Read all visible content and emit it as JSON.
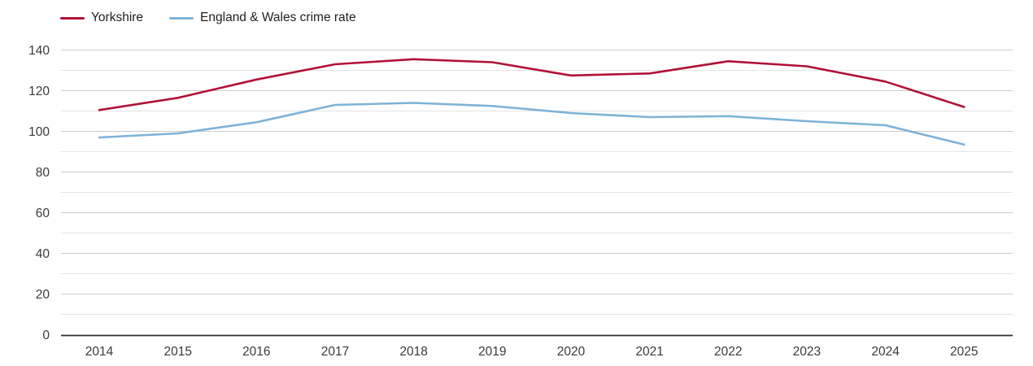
{
  "legend": {
    "position": "top-left",
    "items": [
      {
        "label": "Yorkshire",
        "color": "#b01236"
      },
      {
        "label": "England & Wales crime rate",
        "color": "#7fb2d7"
      }
    ]
  },
  "chart_data": {
    "type": "line",
    "title": "",
    "xlabel": "",
    "ylabel": "",
    "x": [
      2014,
      2015,
      2016,
      2017,
      2018,
      2019,
      2020,
      2021,
      2022,
      2023,
      2024,
      2025
    ],
    "series": [
      {
        "name": "Yorkshire",
        "color": "#b01236",
        "values": [
          110.5,
          116.5,
          125.5,
          133,
          135.5,
          134,
          127.5,
          128.5,
          134.5,
          132,
          124.5,
          112
        ]
      },
      {
        "name": "England & Wales crime rate",
        "color": "#7fb2d7",
        "values": [
          97,
          99,
          104.5,
          113,
          114,
          112.5,
          109,
          107,
          107.5,
          105,
          103,
          93.5
        ]
      }
    ],
    "ylim": [
      0,
      140
    ],
    "y_ticks": [
      0,
      20,
      40,
      60,
      80,
      100,
      120,
      140
    ],
    "y_minor_step": 10,
    "grid": "horizontal",
    "legend_position": "top-left"
  },
  "colors": {
    "grid_major": "#cbcbcb",
    "grid_minor": "#e4e4e4",
    "axis": "#2e2e2e",
    "tick_text": "#3a3a3a",
    "legend_text": "#1f1f1f",
    "background": "#ffffff"
  }
}
